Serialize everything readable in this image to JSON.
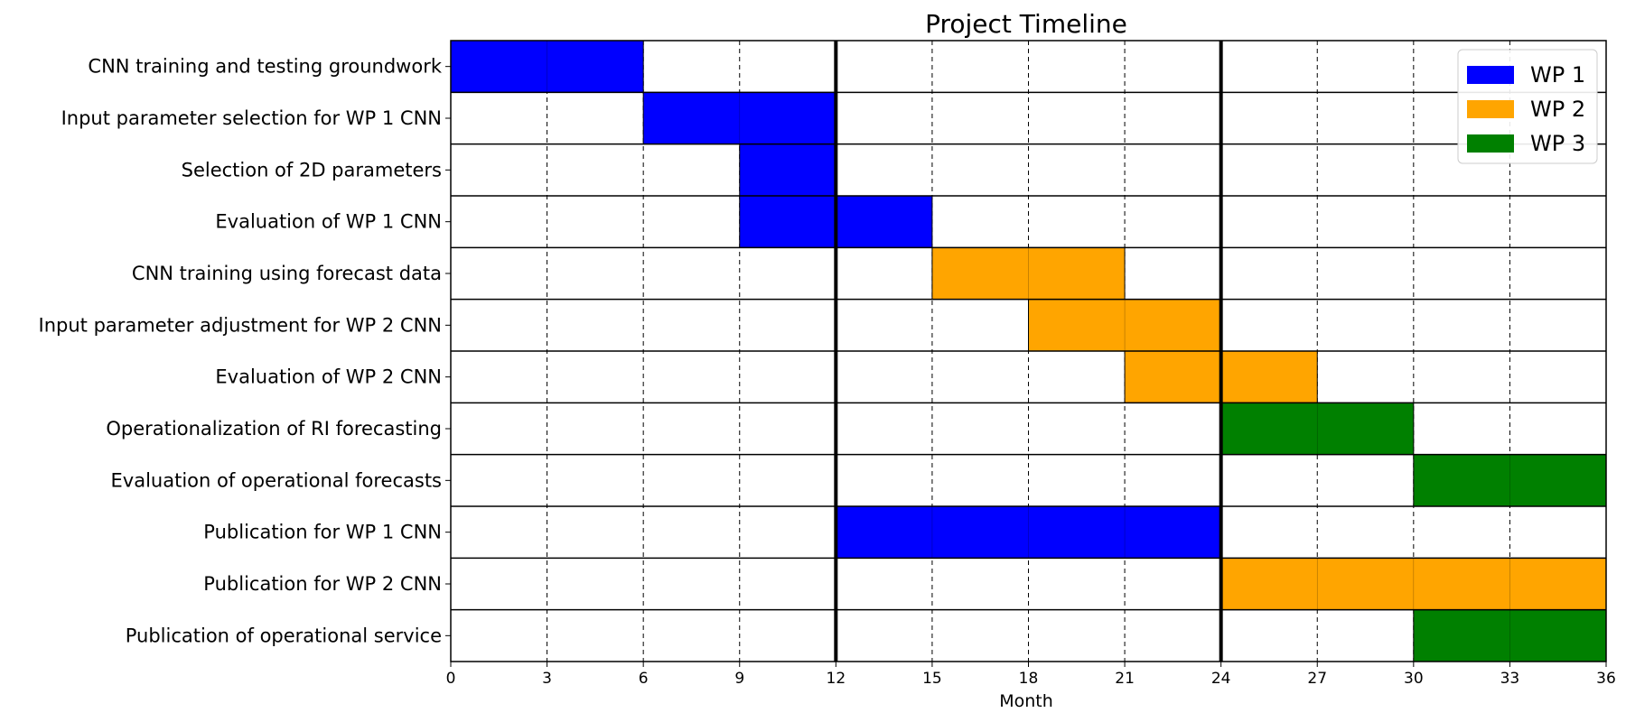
{
  "chart_data": {
    "type": "bar",
    "subtype": "gantt",
    "title": "Project Timeline",
    "xlabel": "Month",
    "ylabel": "",
    "xlim": [
      0,
      36
    ],
    "xticks": [
      0,
      3,
      6,
      9,
      12,
      15,
      18,
      21,
      24,
      27,
      30,
      33,
      36
    ],
    "minor_grid_dashed_every": 3,
    "major_grid_solid_at": [
      12,
      24
    ],
    "legend_position": "top-right",
    "series": [
      {
        "name": "WP 1",
        "color": "#0000ff"
      },
      {
        "name": "WP 2",
        "color": "#ffa500"
      },
      {
        "name": "WP 3",
        "color": "#008000"
      }
    ],
    "tasks": [
      {
        "label": "CNN training and testing groundwork",
        "start": 0,
        "end": 6,
        "series": "WP 1"
      },
      {
        "label": "Input parameter selection for WP 1 CNN",
        "start": 6,
        "end": 12,
        "series": "WP 1"
      },
      {
        "label": "Selection of 2D parameters",
        "start": 9,
        "end": 12,
        "series": "WP 1"
      },
      {
        "label": "Evaluation of WP 1 CNN",
        "start": 9,
        "end": 15,
        "series": "WP 1"
      },
      {
        "label": "CNN training using forecast data",
        "start": 15,
        "end": 21,
        "series": "WP 2"
      },
      {
        "label": "Input parameter adjustment for WP 2 CNN",
        "start": 18,
        "end": 24,
        "series": "WP 2"
      },
      {
        "label": "Evaluation of WP 2 CNN",
        "start": 21,
        "end": 27,
        "series": "WP 2"
      },
      {
        "label": "Operationalization of RI forecasting",
        "start": 24,
        "end": 30,
        "series": "WP 3"
      },
      {
        "label": "Evaluation of operational forecasts",
        "start": 30,
        "end": 36,
        "series": "WP 3"
      },
      {
        "label": "Publication for WP 1 CNN",
        "start": 12,
        "end": 24,
        "series": "WP 1"
      },
      {
        "label": "Publication for WP 2 CNN",
        "start": 24,
        "end": 36,
        "series": "WP 2"
      },
      {
        "label": "Publication of operational service",
        "start": 30,
        "end": 36,
        "series": "WP 3"
      }
    ]
  }
}
